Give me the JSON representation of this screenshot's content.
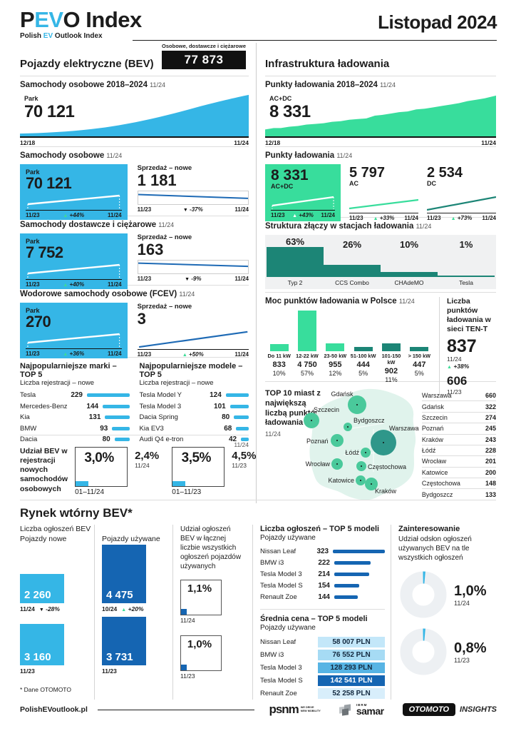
{
  "colors": {
    "cyan": "#35b6e6",
    "blue": "#1565b2",
    "green": "#38dd9c",
    "teal": "#1c8576",
    "map_fill": "#e0f3ec",
    "warsaw_bubble": "#2f978a",
    "city_bubble": "#4ac99b",
    "badge_bg": "#111111"
  },
  "header": {
    "brand_p": "P",
    "brand_ev": "EV",
    "brand_rest": "O Index",
    "sub_1": "Polish",
    "sub_ev": "EV",
    "sub_2": "Outlook Index",
    "issue": "Listopad 2024"
  },
  "left": {
    "heading": "Pojazdy elektryczne (BEV)",
    "badge_label": "Osobowe, dostawcze i ciężarowe",
    "badge_value": "77 873",
    "trend": {
      "title": "Samochody osobowe 2018–2024",
      "date": "11/24",
      "label": "Park",
      "value": "70 121",
      "x_start": "12/18",
      "x_end": "11/24"
    },
    "sections": [
      {
        "title": "Samochody osobowe",
        "date": "11/24",
        "park": {
          "label": "Park",
          "value": "70 121",
          "start": "11/23",
          "end": "11/24",
          "change": "+44%"
        },
        "sales": {
          "label": "Sprzedaż – nowe",
          "value": "1 181",
          "start": "11/23",
          "end": "11/24",
          "change": "-37%"
        }
      },
      {
        "title": "Samochody dostawcze i ciężarowe",
        "date": "11/24",
        "park": {
          "label": "Park",
          "value": "7 752",
          "start": "11/23",
          "end": "11/24",
          "change": "+40%"
        },
        "sales": {
          "label": "Sprzedaż – nowe",
          "value": "163",
          "start": "11/23",
          "end": "11/24",
          "change": "-9%"
        }
      },
      {
        "title": "Wodorowe samochody osobowe (FCEV)",
        "date": "11/24",
        "park": {
          "label": "Park",
          "value": "270",
          "start": "11/23",
          "end": "11/24",
          "change": "+36%"
        },
        "sales": {
          "label": "Sprzedaż – nowe",
          "value": "3",
          "start": "11/23",
          "end": "11/24",
          "change": "+50%"
        }
      }
    ],
    "top_brands": {
      "title": "Najpopularniejsze marki – TOP 5",
      "subtitle": "Liczba rejestracji – nowe",
      "rows": [
        {
          "name": "Tesla",
          "value": 229
        },
        {
          "name": "Mercedes-Benz",
          "value": 144
        },
        {
          "name": "Kia",
          "value": 131
        },
        {
          "name": "BMW",
          "value": 93
        },
        {
          "name": "Dacia",
          "value": 80
        }
      ]
    },
    "top_models": {
      "title": "Najpopularniejsze modele – TOP 5",
      "subtitle": "Liczba rejestracji – nowe",
      "date": "11/24",
      "rows": [
        {
          "name": "Tesla Model Y",
          "value": 124
        },
        {
          "name": "Tesla Model 3",
          "value": 101
        },
        {
          "name": "Dacia Spring",
          "value": 80
        },
        {
          "name": "Kia EV3",
          "value": 68
        },
        {
          "name": "Audi Q4 e-tron",
          "value": 42
        }
      ]
    },
    "share": {
      "caption": "Udział BEV w rejestracji nowych samochodów osobowych",
      "boxes": [
        {
          "pct": "3,0%",
          "period": "01–11/24",
          "side_pct": "2,4%",
          "side_period": "11/24"
        },
        {
          "pct": "3,5%",
          "period": "01–11/23",
          "side_pct": "4,5%",
          "side_period": "11/23"
        }
      ]
    }
  },
  "right": {
    "heading": "Infrastruktura ładowania",
    "trend": {
      "title": "Punkty ładowania 2018–2024",
      "date": "11/24",
      "label": "AC+DC",
      "value": "8 331",
      "x_start": "12/18",
      "x_end": "11/24"
    },
    "points": {
      "title": "Punkty ładowania",
      "date": "11/24",
      "cards": [
        {
          "value": "8 331",
          "label": "AC+DC",
          "start": "11/23",
          "end": "11/24",
          "change": "+43%"
        },
        {
          "value": "5 797",
          "label": "AC",
          "start": "11/23",
          "end": "11/24",
          "change": "+33%"
        },
        {
          "value": "2 534",
          "label": "DC",
          "start": "11/23",
          "end": "11/24",
          "change": "+73%"
        }
      ]
    },
    "connectors": {
      "title": "Struktura złączy w stacjach ładowania",
      "date": "11/24",
      "bars": [
        {
          "name": "Typ 2",
          "pct": "63%"
        },
        {
          "name": "CCS Combo",
          "pct": "26%"
        },
        {
          "name": "CHAdeMO",
          "pct": "10%"
        },
        {
          "name": "Tesla",
          "pct": "1%"
        }
      ]
    },
    "power": {
      "title": "Moc punktów ładowania w Polsce",
      "date": "11/24",
      "bars": [
        {
          "range": "Do 11 kW",
          "display": "833",
          "pct": "10%",
          "value": 833
        },
        {
          "range": "12-22 kW",
          "display": "4 750",
          "pct": "57%",
          "value": 4750
        },
        {
          "range": "23-50 kW",
          "display": "955",
          "pct": "12%",
          "value": 955
        },
        {
          "range": "51-100 kW",
          "display": "444",
          "pct": "5%",
          "value": 444
        },
        {
          "range": "101-150 kW",
          "display": "902",
          "pct": "11%",
          "value": 902
        },
        {
          "range": "> 150 kW",
          "display": "447",
          "pct": "5%",
          "value": 447
        }
      ]
    },
    "tent": {
      "title": "Liczba punktów ładowania w sieci TEN-T",
      "current": "837",
      "current_period": "11/24",
      "change": "+38%",
      "previous": "606",
      "previous_period": "11/23"
    },
    "cities": {
      "title": "TOP 10 miast z największą liczbą punktów ładowania",
      "date": "11/24",
      "rows": [
        {
          "name": "Warszawa",
          "value": 660
        },
        {
          "name": "Gdańsk",
          "value": 322
        },
        {
          "name": "Szczecin",
          "value": 274
        },
        {
          "name": "Poznań",
          "value": 245
        },
        {
          "name": "Kraków",
          "value": 243
        },
        {
          "name": "Łódź",
          "value": 228
        },
        {
          "name": "Wrocław",
          "value": 201
        },
        {
          "name": "Katowice",
          "value": 200
        },
        {
          "name": "Częstochowa",
          "value": 148
        },
        {
          "name": "Bydgoszcz",
          "value": 133
        }
      ]
    }
  },
  "secondary": {
    "heading": "Rynek wtórny BEV*",
    "group_label": "Liczba ogłoszeń BEV",
    "new": {
      "label": "Pojazdy nowe",
      "current": {
        "value": "2 260",
        "value_num": 2260,
        "period": "11/24",
        "change": "-28%"
      },
      "previous": {
        "value": "3 160",
        "value_num": 3160,
        "period": "11/23"
      }
    },
    "used": {
      "label": "Pojazdy używane",
      "current": {
        "value": "4 475",
        "value_num": 4475,
        "period": "10/24",
        "change": "+20%"
      },
      "previous": {
        "value": "3 731",
        "value_num": 3731,
        "period": "11/23"
      }
    },
    "share": {
      "caption": "Udział ogłoszeń BEV w łącznej liczbie wszystkich ogłoszeń pojazdów używanych",
      "current": {
        "pct": "1,1%",
        "period": "11/24"
      },
      "previous": {
        "pct": "1,0%",
        "period": "11/23"
      }
    },
    "footnote": "* Dane OTOMOTO",
    "top_listings": {
      "title": "Liczba ogłoszeń – TOP 5 modeli",
      "subtitle": "Pojazdy używane",
      "rows": [
        {
          "name": "Nissan Leaf",
          "value": 323
        },
        {
          "name": "BMW i3",
          "value": 222
        },
        {
          "name": "Tesla Model 3",
          "value": 214
        },
        {
          "name": "Tesla Model S",
          "value": 154
        },
        {
          "name": "Renault Zoe",
          "value": 144
        }
      ]
    },
    "prices": {
      "title": "Średnia cena – TOP 5 modeli",
      "subtitle": "Pojazdy używane",
      "rows": [
        {
          "name": "Nissan Leaf",
          "price": "58 007 PLN",
          "shade": "#c3e7f9",
          "light_text": false
        },
        {
          "name": "BMW i3",
          "price": "76 552 PLN",
          "shade": "#a6dbf4",
          "light_text": false
        },
        {
          "name": "Tesla Model 3",
          "price": "128 293 PLN",
          "shade": "#57b4e4",
          "light_text": false
        },
        {
          "name": "Tesla Model S",
          "price": "142 541 PLN",
          "shade": "#1565b2",
          "light_text": true
        },
        {
          "name": "Renault Zoe",
          "price": "52 258 PLN",
          "shade": "#d8eefb",
          "light_text": false
        }
      ]
    },
    "interest": {
      "title": "Zainteresowanie",
      "subtitle": "Udział odsłon ogłoszeń używanych BEV na tle wszystkich ogłoszeń",
      "donuts": [
        {
          "pct": "1,0%",
          "period": "11/24"
        },
        {
          "pct": "0,8%",
          "period": "11/23"
        }
      ]
    }
  },
  "footer": {
    "site": "PolishEVoutlook.pl",
    "psnm": "psnm",
    "psnm_tag1": "WE DRIVE",
    "psnm_tag2": "NEW MOBILITY",
    "samar_ibrm": "IBRM",
    "samar": "samar",
    "otomoto": "OTOMOTO",
    "insights": "INSIGHTS"
  },
  "chart_data": [
    {
      "id": "bev-fleet-trend",
      "type": "area",
      "title": "Samochody osobowe 2018–2024",
      "x_range": [
        "12/18",
        "11/24"
      ],
      "end_value": 70121,
      "shape": "monotonic increase",
      "color": "#35b6e6"
    },
    {
      "id": "bev-park-vs-sales",
      "type": "line",
      "series": [
        {
          "name": "Samochody osobowe – Park",
          "x": [
            "11/23",
            "11/24"
          ],
          "end_value": 70121,
          "change_pct": 44
        },
        {
          "name": "Samochody osobowe – Sprzedaż nowe",
          "x": [
            "11/23",
            "11/24"
          ],
          "end_value": 1181,
          "change_pct": -37
        },
        {
          "name": "Dostawcze i ciężarowe – Park",
          "x": [
            "11/23",
            "11/24"
          ],
          "end_value": 7752,
          "change_pct": 40
        },
        {
          "name": "Dostawcze i ciężarowe – Sprzedaż nowe",
          "x": [
            "11/23",
            "11/24"
          ],
          "end_value": 163,
          "change_pct": -9
        },
        {
          "name": "FCEV – Park",
          "x": [
            "11/23",
            "11/24"
          ],
          "end_value": 270,
          "change_pct": 36
        },
        {
          "name": "FCEV – Sprzedaż nowe",
          "x": [
            "11/23",
            "11/24"
          ],
          "end_value": 3,
          "change_pct": 50
        }
      ]
    },
    {
      "id": "top-brands",
      "type": "bar",
      "title": "Najpopularniejsze marki – TOP 5",
      "categories": [
        "Tesla",
        "Mercedes-Benz",
        "Kia",
        "BMW",
        "Dacia"
      ],
      "values": [
        229,
        144,
        131,
        93,
        80
      ]
    },
    {
      "id": "top-models",
      "type": "bar",
      "title": "Najpopularniejsze modele – TOP 5",
      "categories": [
        "Tesla Model Y",
        "Tesla Model 3",
        "Dacia Spring",
        "Kia EV3",
        "Audi Q4 e-tron"
      ],
      "values": [
        124,
        101,
        80,
        68,
        42
      ]
    },
    {
      "id": "bev-share",
      "type": "bar",
      "title": "Udział BEV w rejestracji nowych samochodów osobowych",
      "categories": [
        "01–11/24",
        "11/24",
        "01–11/23",
        "11/23"
      ],
      "values": [
        3.0,
        2.4,
        3.5,
        4.5
      ],
      "unit": "%"
    },
    {
      "id": "charging-trend",
      "type": "area",
      "title": "Punkty ładowania 2018–2024",
      "x_range": [
        "12/18",
        "11/24"
      ],
      "end_value": 8331,
      "shape": "monotonic increase",
      "color": "#38dd9c"
    },
    {
      "id": "charging-points",
      "type": "line",
      "series": [
        {
          "name": "AC+DC",
          "x": [
            "11/23",
            "11/24"
          ],
          "end_value": 8331,
          "change_pct": 43
        },
        {
          "name": "AC",
          "x": [
            "11/23",
            "11/24"
          ],
          "end_value": 5797,
          "change_pct": 33
        },
        {
          "name": "DC",
          "x": [
            "11/23",
            "11/24"
          ],
          "end_value": 2534,
          "change_pct": 73
        }
      ]
    },
    {
      "id": "connector-structure",
      "type": "bar",
      "title": "Struktura złączy w stacjach ładowania",
      "categories": [
        "Typ 2",
        "CCS Combo",
        "CHAdeMO",
        "Tesla"
      ],
      "values": [
        63,
        26,
        10,
        1
      ],
      "unit": "%"
    },
    {
      "id": "power-distribution",
      "type": "bar",
      "title": "Moc punktów ładowania w Polsce",
      "categories": [
        "Do 11 kW",
        "12-22 kW",
        "23-50 kW",
        "51-100 kW",
        "101-150 kW",
        "> 150 kW"
      ],
      "values": [
        833,
        4750,
        955,
        444,
        902,
        447
      ],
      "shares_pct": [
        10,
        57,
        12,
        5,
        11,
        5
      ]
    },
    {
      "id": "ten-t",
      "type": "bar",
      "title": "Liczba punktów ładowania w sieci TEN-T",
      "categories": [
        "11/24",
        "11/23"
      ],
      "values": [
        837,
        606
      ],
      "change_pct": 38
    },
    {
      "id": "top-cities",
      "type": "bar",
      "title": "TOP 10 miast z największą liczbą punktów ładowania",
      "categories": [
        "Warszawa",
        "Gdańsk",
        "Szczecin",
        "Poznań",
        "Kraków",
        "Łódź",
        "Wrocław",
        "Katowice",
        "Częstochowa",
        "Bydgoszcz"
      ],
      "values": [
        660,
        322,
        274,
        245,
        243,
        228,
        201,
        200,
        148,
        133
      ]
    },
    {
      "id": "listings",
      "type": "bar",
      "title": "Liczba ogłoszeń BEV",
      "categories": [
        "Nowe 11/24",
        "Nowe 11/23",
        "Używane 10/24",
        "Używane 11/23"
      ],
      "values": [
        2260,
        3160,
        4475,
        3731
      ]
    },
    {
      "id": "listing-share",
      "type": "bar",
      "title": "Udział ogłoszeń BEV w ogłoszeniach pojazdów używanych",
      "categories": [
        "11/24",
        "11/23"
      ],
      "values": [
        1.1,
        1.0
      ],
      "unit": "%"
    },
    {
      "id": "top-used-listings",
      "type": "bar",
      "title": "Liczba ogłoszeń – TOP 5 modeli (używane)",
      "categories": [
        "Nissan Leaf",
        "BMW i3",
        "Tesla Model 3",
        "Tesla Model S",
        "Renault Zoe"
      ],
      "values": [
        323,
        222,
        214,
        154,
        144
      ]
    },
    {
      "id": "avg-prices",
      "type": "table",
      "title": "Średnia cena – TOP 5 modeli (używane)",
      "categories": [
        "Nissan Leaf",
        "BMW i3",
        "Tesla Model 3",
        "Tesla Model S",
        "Renault Zoe"
      ],
      "values": [
        58007,
        76552,
        128293,
        142541,
        52258
      ],
      "unit": "PLN"
    },
    {
      "id": "interest",
      "type": "pie",
      "title": "Udział odsłon ogłoszeń używanych BEV",
      "categories": [
        "11/24",
        "11/23"
      ],
      "values": [
        1.0,
        0.8
      ],
      "unit": "%"
    }
  ]
}
